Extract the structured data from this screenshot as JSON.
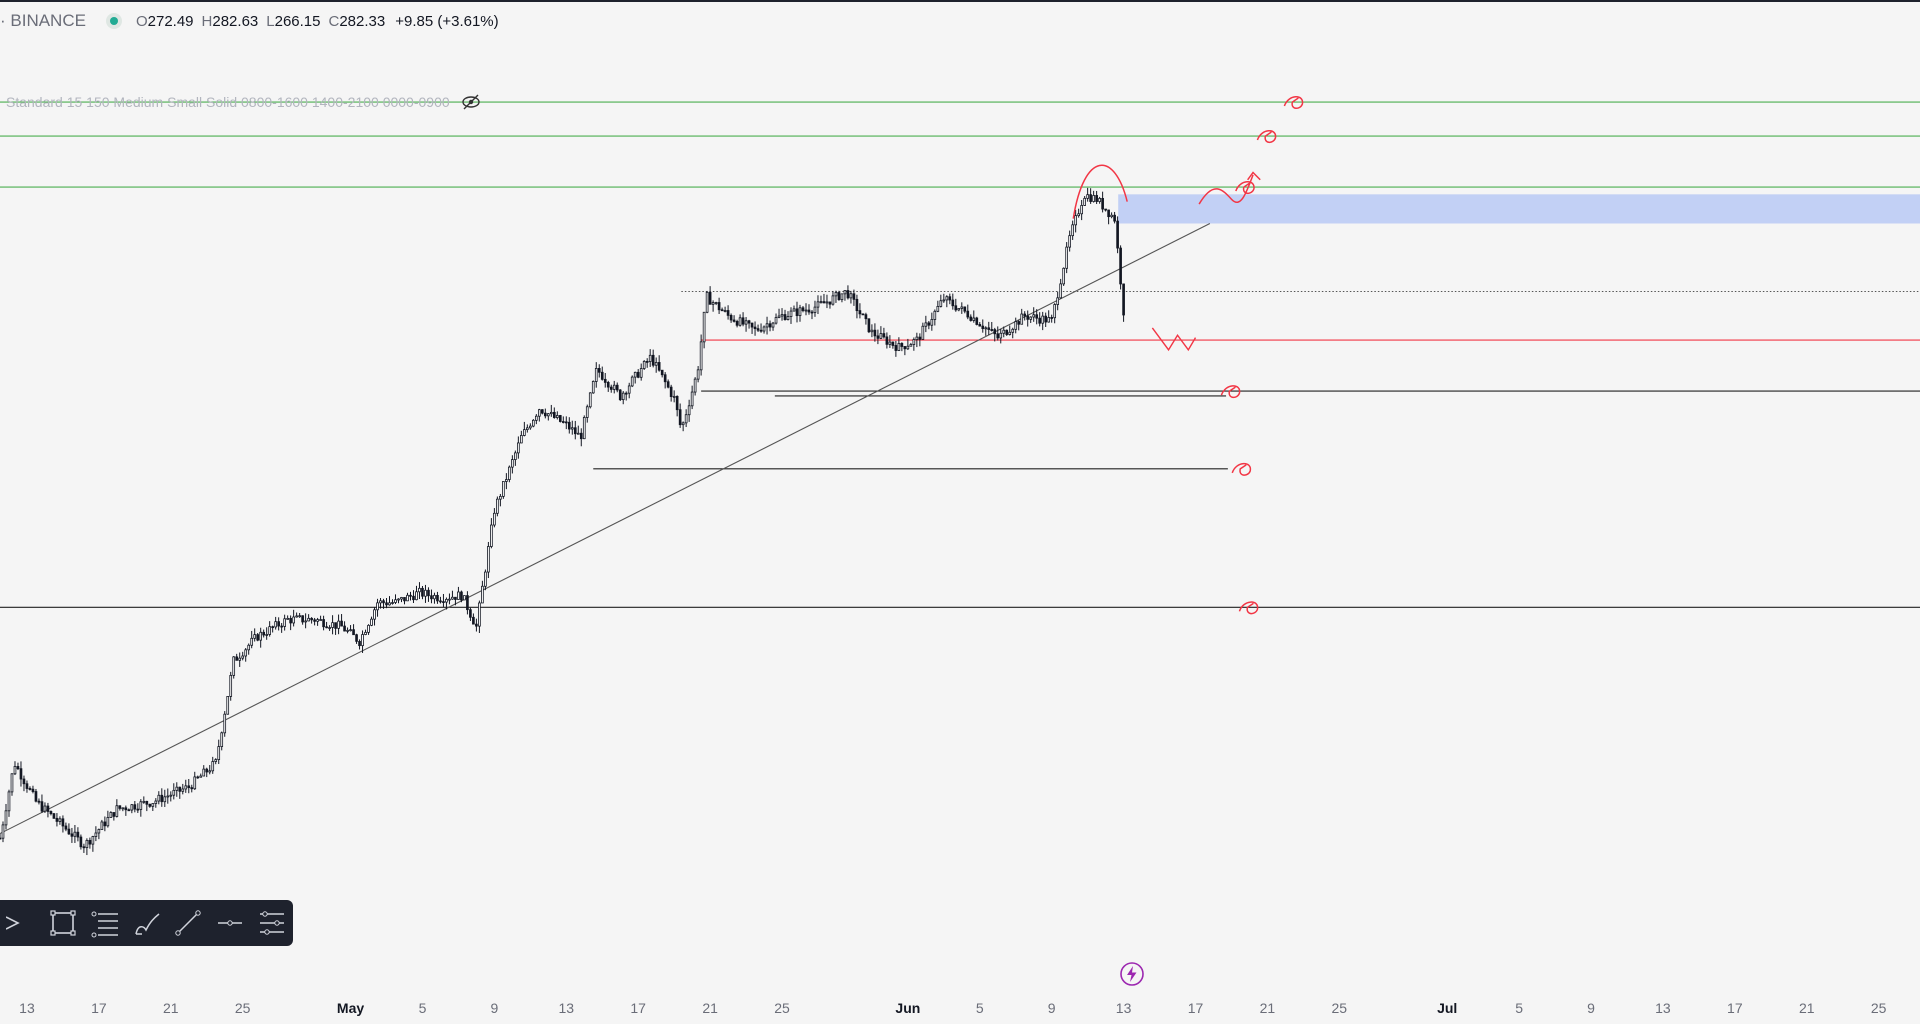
{
  "legend": {
    "exchange": "· BINANCE",
    "open_label": "O",
    "open": "272.49",
    "high_label": "H",
    "high": "282.63",
    "low_label": "L",
    "low": "266.15",
    "close_label": "C",
    "close": "282.33",
    "change": "+9.85 (+3.61%)",
    "live_color": "#22ab94"
  },
  "indicator": {
    "label": "Standard 15 150 Medium Small Solid 0800-1600 1400-2100 0000-0900",
    "icon": "eye-hidden-icon"
  },
  "toolbar": {
    "tools": [
      {
        "name": "cursor-tool",
        "icon": "cursor-icon"
      },
      {
        "name": "rectangle-tool",
        "icon": "rectangle-icon"
      },
      {
        "name": "fib-tool",
        "icon": "fib-retracement-icon"
      },
      {
        "name": "brush-tool",
        "icon": "brush-icon"
      },
      {
        "name": "trendline-tool",
        "icon": "trendline-icon"
      },
      {
        "name": "horizontal-line-tool",
        "icon": "horizontal-line-icon"
      },
      {
        "name": "settings-tool",
        "icon": "layers-settings-icon"
      }
    ]
  },
  "flash_icon": "lightning-icon",
  "chart_data": {
    "type": "candlestick",
    "x_ticks": [
      {
        "label": "13",
        "day": -18
      },
      {
        "label": "17",
        "day": -14
      },
      {
        "label": "21",
        "day": -10
      },
      {
        "label": "25",
        "day": -6
      },
      {
        "label": "May",
        "day": 0,
        "month": true
      },
      {
        "label": "5",
        "day": 4
      },
      {
        "label": "9",
        "day": 8
      },
      {
        "label": "13",
        "day": 12
      },
      {
        "label": "17",
        "day": 16
      },
      {
        "label": "21",
        "day": 20
      },
      {
        "label": "25",
        "day": 24
      },
      {
        "label": "Jun",
        "day": 31,
        "month": true
      },
      {
        "label": "5",
        "day": 35
      },
      {
        "label": "9",
        "day": 39
      },
      {
        "label": "13",
        "day": 43
      },
      {
        "label": "17",
        "day": 47
      },
      {
        "label": "21",
        "day": 51
      },
      {
        "label": "25",
        "day": 55
      },
      {
        "label": "Jul",
        "day": 61,
        "month": true
      },
      {
        "label": "5",
        "day": 65
      },
      {
        "label": "9",
        "day": 69
      },
      {
        "label": "13",
        "day": 73
      },
      {
        "label": "17",
        "day": 77
      },
      {
        "label": "21",
        "day": 81
      },
      {
        "label": "25",
        "day": 85
      }
    ],
    "price_path": [
      [
        -19.5,
        165
      ],
      [
        -18.7,
        196
      ],
      [
        -17.5,
        180
      ],
      [
        -16.0,
        170
      ],
      [
        -14.8,
        162
      ],
      [
        -13.0,
        177
      ],
      [
        -11.0,
        180
      ],
      [
        -9.0,
        186
      ],
      [
        -7.5,
        196
      ],
      [
        -6.5,
        238
      ],
      [
        -5.2,
        248
      ],
      [
        -3.5,
        255
      ],
      [
        -2.0,
        255
      ],
      [
        -0.5,
        252
      ],
      [
        0.5,
        246
      ],
      [
        1.5,
        262
      ],
      [
        2.5,
        262
      ],
      [
        3.8,
        266
      ],
      [
        5.0,
        264
      ],
      [
        6.2,
        265
      ],
      [
        7.0,
        252
      ],
      [
        8.0,
        300
      ],
      [
        9.5,
        330
      ],
      [
        10.5,
        342
      ],
      [
        12.0,
        335
      ],
      [
        12.8,
        330
      ],
      [
        13.7,
        358
      ],
      [
        15.0,
        347
      ],
      [
        16.7,
        363
      ],
      [
        18.0,
        346
      ],
      [
        18.4,
        333
      ],
      [
        19.3,
        357
      ],
      [
        19.8,
        388
      ],
      [
        21.0,
        380
      ],
      [
        22.5,
        374
      ],
      [
        24.0,
        380
      ],
      [
        26.0,
        384
      ],
      [
        27.6,
        390
      ],
      [
        29.0,
        373
      ],
      [
        30.5,
        367
      ],
      [
        31.5,
        370
      ],
      [
        33.0,
        387
      ],
      [
        34.5,
        380
      ],
      [
        36.0,
        371
      ],
      [
        37.5,
        380
      ],
      [
        39.0,
        378
      ],
      [
        40.0,
        412
      ],
      [
        40.8,
        430
      ],
      [
        41.5,
        428
      ],
      [
        42.5,
        420
      ],
      [
        43.0,
        382
      ]
    ],
    "horizontal_lines": [
      {
        "y": 468,
        "from_day": -30,
        "to_day": 90,
        "color": "#4caf50"
      },
      {
        "y": 454,
        "from_day": -30,
        "to_day": 90,
        "color": "#4caf50"
      },
      {
        "y": 433,
        "from_day": -30,
        "to_day": 90,
        "color": "#4caf50"
      },
      {
        "y": 390,
        "from_day": 18.4,
        "to_day": 90,
        "color": "#555555",
        "dotted": true
      },
      {
        "y": 370,
        "from_day": 19.5,
        "to_day": 90,
        "color": "#f23645"
      },
      {
        "y": 349,
        "from_day": 19.5,
        "to_day": 90,
        "color": "#222222"
      },
      {
        "y": 347,
        "from_day": 23.6,
        "to_day": 48.7,
        "color": "#222222"
      },
      {
        "y": 317,
        "from_day": 13.5,
        "to_day": 48.8,
        "color": "#222222"
      },
      {
        "y": 260,
        "from_day": -30,
        "to_day": 90,
        "color": "#222222"
      }
    ],
    "trendline": {
      "from": [
        -20,
        165
      ],
      "to": [
        47.8,
        418
      ],
      "color": "#555555"
    },
    "zone": {
      "from_day": 42.7,
      "to_day": 90,
      "y_top": 430,
      "y_bottom": 418,
      "color": "#b8c9f5"
    },
    "annotations_color": "#f23645",
    "ylim": [
      100,
      510
    ],
    "xlim": [
      -19.5,
      87.3
    ],
    "grid": false
  }
}
